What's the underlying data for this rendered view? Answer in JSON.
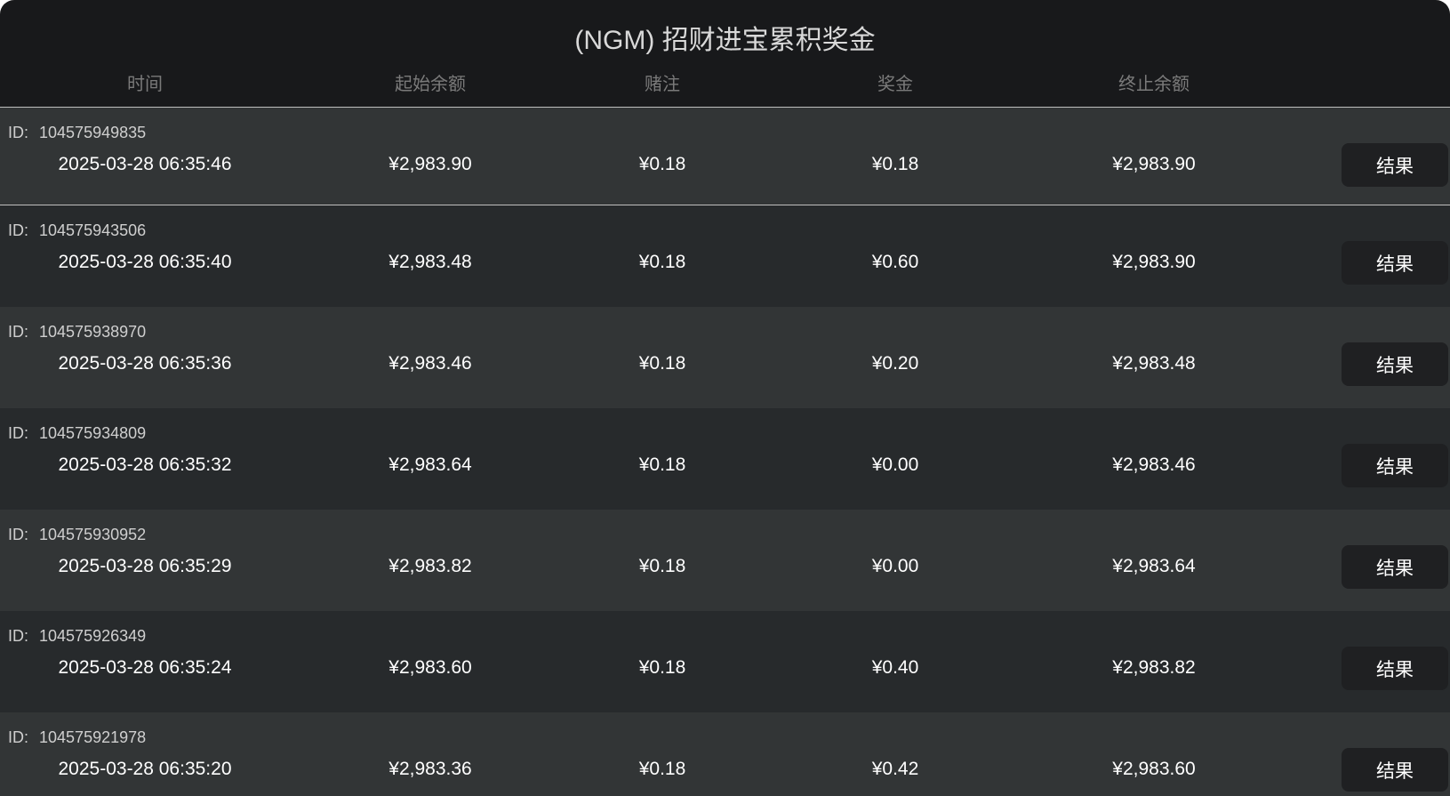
{
  "title": "(NGM) 招财进宝累积奖金",
  "headers": {
    "time": "时间",
    "start_balance": "起始余额",
    "bet": "赌注",
    "prize": "奖金",
    "end_balance": "终止余额"
  },
  "id_label": "ID:",
  "result_label": "结果",
  "rows": [
    {
      "id": "104575949835",
      "time": "2025-03-28 06:35:46",
      "start": "¥2,983.90",
      "bet": "¥0.18",
      "prize": "¥0.18",
      "end": "¥2,983.90"
    },
    {
      "id": "104575943506",
      "time": "2025-03-28 06:35:40",
      "start": "¥2,983.48",
      "bet": "¥0.18",
      "prize": "¥0.60",
      "end": "¥2,983.90"
    },
    {
      "id": "104575938970",
      "time": "2025-03-28 06:35:36",
      "start": "¥2,983.46",
      "bet": "¥0.18",
      "prize": "¥0.20",
      "end": "¥2,983.48"
    },
    {
      "id": "104575934809",
      "time": "2025-03-28 06:35:32",
      "start": "¥2,983.64",
      "bet": "¥0.18",
      "prize": "¥0.00",
      "end": "¥2,983.46"
    },
    {
      "id": "104575930952",
      "time": "2025-03-28 06:35:29",
      "start": "¥2,983.82",
      "bet": "¥0.18",
      "prize": "¥0.00",
      "end": "¥2,983.64"
    },
    {
      "id": "104575926349",
      "time": "2025-03-28 06:35:24",
      "start": "¥2,983.60",
      "bet": "¥0.18",
      "prize": "¥0.40",
      "end": "¥2,983.82"
    },
    {
      "id": "104575921978",
      "time": "2025-03-28 06:35:20",
      "start": "¥2,983.36",
      "bet": "¥0.18",
      "prize": "¥0.42",
      "end": "¥2,983.60"
    }
  ]
}
